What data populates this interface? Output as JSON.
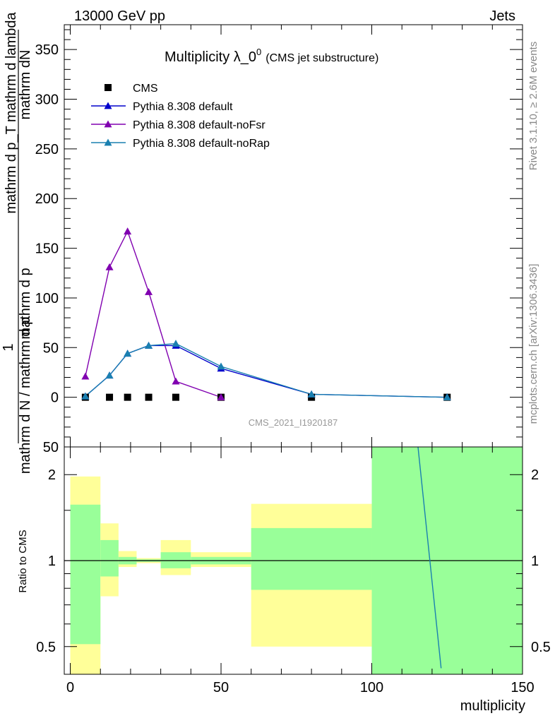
{
  "header": {
    "left": "13000 GeV pp",
    "right": "Jets"
  },
  "side_labels": {
    "rivet": "Rivet 3.1.10, ≥ 2.6M events",
    "mcplots": "mcplots.cern.ch [arXiv:1306.3436]"
  },
  "chart_data": [
    {
      "type": "line",
      "title": "Multiplicity λ_0",
      "title_superscript": "0",
      "subtitle": "(CMS jet substructure)",
      "watermark": "CMS_2021_I1920187",
      "ylabel_top": "mathrm dN",
      "ylabel_top_line2": "mathrm d p_T mathrm d lambda",
      "ylabel_top_line3": "mathrm d p",
      "ylabel_main": "1",
      "ylabel_bottom": "mathrm d N / mathrm d p",
      "ylim": [
        -50,
        375
      ],
      "xlim": [
        -2,
        150
      ],
      "y_ticks": [
        0,
        50,
        100,
        150,
        200,
        250,
        300,
        350
      ],
      "y_tick_labels": [
        "0",
        "50",
        "100",
        "150",
        "200",
        "250",
        "300",
        "350"
      ],
      "y_bottom_label": "50",
      "legend_position": "top-left",
      "series": [
        {
          "name": "CMS",
          "marker": "square",
          "color": "#000000",
          "x": [
            5,
            13,
            19,
            26,
            35,
            50,
            80,
            125
          ],
          "y": [
            0,
            0,
            0,
            0,
            0,
            0,
            0,
            0
          ]
        },
        {
          "name": "Pythia 8.308 default",
          "marker": "triangle",
          "color": "#0000cc",
          "x": [
            5,
            13,
            19,
            26,
            35,
            50,
            80,
            125
          ],
          "y": [
            1,
            22,
            44,
            52,
            52,
            29,
            3,
            0
          ]
        },
        {
          "name": "Pythia 8.308 default-noFsr",
          "marker": "triangle",
          "color": "#8000b0",
          "x": [
            5,
            13,
            19,
            26,
            35,
            50
          ],
          "y": [
            21,
            131,
            167,
            106,
            16,
            0
          ]
        },
        {
          "name": "Pythia 8.308 default-noRap",
          "marker": "triangle",
          "color": "#1a80b0",
          "x": [
            5,
            13,
            19,
            26,
            35,
            50,
            80,
            125
          ],
          "y": [
            1,
            22,
            44,
            52,
            54,
            31,
            3,
            0
          ]
        }
      ]
    },
    {
      "type": "area",
      "ylabel": "Ratio to CMS",
      "xlabel": "multiplicity",
      "log_y": true,
      "ylim": [
        0.4,
        2.5
      ],
      "xlim": [
        -2,
        150
      ],
      "x_ticks": [
        0,
        50,
        100,
        150
      ],
      "x_tick_labels": [
        "0",
        "50",
        "100",
        "150"
      ],
      "y_ticks": [
        0.5,
        1,
        2
      ],
      "y_tick_labels": [
        "0.5",
        "1",
        "2"
      ],
      "reference": 1,
      "bands": [
        {
          "x0": 0,
          "x1": 10,
          "yellow": [
            0.3,
            1.97
          ],
          "green": [
            0.51,
            1.57
          ]
        },
        {
          "x0": 10,
          "x1": 16,
          "yellow": [
            0.75,
            1.35
          ],
          "green": [
            0.88,
            1.18
          ]
        },
        {
          "x0": 16,
          "x1": 22,
          "yellow": [
            0.95,
            1.08
          ],
          "green": [
            0.97,
            1.03
          ]
        },
        {
          "x0": 22,
          "x1": 30,
          "yellow": [
            0.98,
            1.02
          ],
          "green": [
            0.99,
            1.01
          ]
        },
        {
          "x0": 30,
          "x1": 40,
          "yellow": [
            0.89,
            1.18
          ],
          "green": [
            0.94,
            1.07
          ]
        },
        {
          "x0": 40,
          "x1": 60,
          "yellow": [
            0.95,
            1.07
          ],
          "green": [
            0.97,
            1.03
          ]
        },
        {
          "x0": 60,
          "x1": 100,
          "yellow": [
            0.5,
            1.58
          ],
          "green": [
            0.79,
            1.3
          ]
        },
        {
          "x0": 100,
          "x1": 150,
          "yellow": [
            0.3,
            3.0
          ],
          "green": [
            0.3,
            3.0
          ]
        }
      ],
      "ratio_line": {
        "name": "Pythia 8.308 default-noRap",
        "color": "#1a80b0",
        "x": [
          115,
          123
        ],
        "y": [
          2.7,
          0.42
        ]
      }
    }
  ],
  "colors": {
    "yellow_band": "#ffff99",
    "green_band": "#99ff99"
  }
}
